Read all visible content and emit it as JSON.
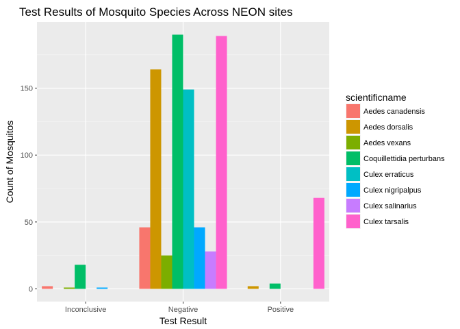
{
  "chart_data": {
    "type": "bar",
    "title": "Test Results of Mosquito Species Across NEON sites",
    "xlabel": "Test Result",
    "ylabel": "Count of Mosquitos",
    "categories": [
      "Inconclusive",
      "Negative",
      "Positive"
    ],
    "ylim": [
      -9.5,
      199.5
    ],
    "yticks": [
      0,
      50,
      100,
      150
    ],
    "grid": true,
    "legend_title": "scientificname",
    "legend_position": "right",
    "series": [
      {
        "name": "Aedes canadensis",
        "color": "#F8766D",
        "values": [
          2,
          46,
          0
        ]
      },
      {
        "name": "Aedes dorsalis",
        "color": "#CD9600",
        "values": [
          0,
          164,
          2
        ]
      },
      {
        "name": "Aedes vexans",
        "color": "#7CAE00",
        "values": [
          1,
          25,
          0
        ]
      },
      {
        "name": "Coquillettidia perturbans",
        "color": "#00BE67",
        "values": [
          18,
          190,
          4
        ]
      },
      {
        "name": "Culex erraticus",
        "color": "#00BFC4",
        "values": [
          0,
          149,
          0
        ]
      },
      {
        "name": "Culex nigripalpus",
        "color": "#00A9FF",
        "values": [
          1,
          46,
          0
        ]
      },
      {
        "name": "Culex salinarius",
        "color": "#C77CFF",
        "values": [
          0,
          28,
          0
        ]
      },
      {
        "name": "Culex tarsalis",
        "color": "#FF61CC",
        "values": [
          0,
          189,
          68
        ]
      }
    ]
  }
}
